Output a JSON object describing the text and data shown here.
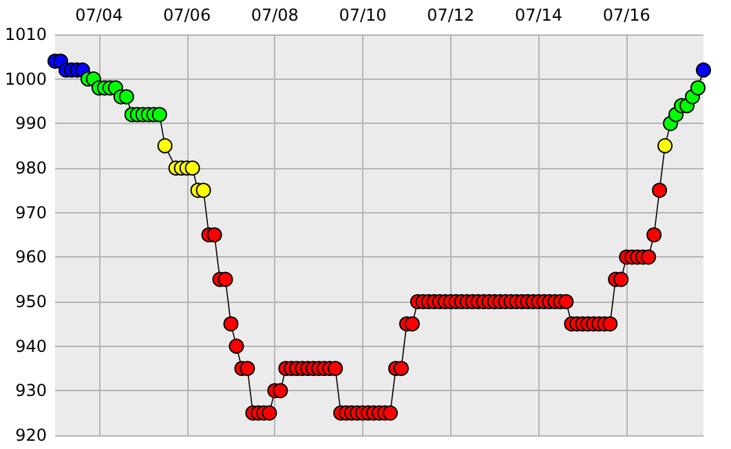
{
  "chart_data": {
    "type": "line",
    "xlim": [
      "--07-03T00:00",
      "--07-17T18:00"
    ],
    "ylim": [
      920,
      1010
    ],
    "xticks": [
      {
        "value": "--07-04",
        "label": "07/04"
      },
      {
        "value": "--07-06",
        "label": "07/06"
      },
      {
        "value": "--07-08",
        "label": "07/08"
      },
      {
        "value": "--07-10",
        "label": "07/10"
      },
      {
        "value": "--07-12",
        "label": "07/12"
      },
      {
        "value": "--07-14",
        "label": "07/14"
      },
      {
        "value": "--07-16",
        "label": "07/16"
      }
    ],
    "yticks": [
      920,
      930,
      940,
      950,
      960,
      970,
      980,
      990,
      1000,
      1010
    ],
    "grid": true,
    "marker": "circle",
    "line_style": "solid",
    "x": [
      "--07-03T00:00",
      "--07-03T03:00",
      "--07-03T06:00",
      "--07-03T09:00",
      "--07-03T12:00",
      "--07-03T15:00",
      "--07-03T18:00",
      "--07-03T21:00",
      "--07-04T00:00",
      "--07-04T03:00",
      "--07-04T06:00",
      "--07-04T09:00",
      "--07-04T12:00",
      "--07-04T15:00",
      "--07-04T18:00",
      "--07-04T21:00",
      "--07-05T00:00",
      "--07-05T03:00",
      "--07-05T06:00",
      "--07-05T09:00",
      "--07-05T12:00",
      "--07-05T18:00",
      "--07-05T21:00",
      "--07-06T00:00",
      "--07-06T03:00",
      "--07-06T06:00",
      "--07-06T09:00",
      "--07-06T12:00",
      "--07-06T15:00",
      "--07-06T18:00",
      "--07-06T21:00",
      "--07-07T00:00",
      "--07-07T03:00",
      "--07-07T06:00",
      "--07-07T09:00",
      "--07-07T12:00",
      "--07-07T15:00",
      "--07-07T18:00",
      "--07-07T21:00",
      "--07-08T00:00",
      "--07-08T03:00",
      "--07-08T06:00",
      "--07-08T09:00",
      "--07-08T12:00",
      "--07-08T15:00",
      "--07-08T18:00",
      "--07-08T21:00",
      "--07-09T00:00",
      "--07-09T03:00",
      "--07-09T06:00",
      "--07-09T09:00",
      "--07-09T12:00",
      "--07-09T15:00",
      "--07-09T18:00",
      "--07-09T21:00",
      "--07-10T00:00",
      "--07-10T03:00",
      "--07-10T06:00",
      "--07-10T09:00",
      "--07-10T12:00",
      "--07-10T15:00",
      "--07-10T18:00",
      "--07-10T21:00",
      "--07-11T00:00",
      "--07-11T03:00",
      "--07-11T06:00",
      "--07-11T09:00",
      "--07-11T12:00",
      "--07-11T15:00",
      "--07-11T18:00",
      "--07-11T21:00",
      "--07-12T00:00",
      "--07-12T03:00",
      "--07-12T06:00",
      "--07-12T09:00",
      "--07-12T12:00",
      "--07-12T15:00",
      "--07-12T18:00",
      "--07-12T21:00",
      "--07-13T00:00",
      "--07-13T03:00",
      "--07-13T06:00",
      "--07-13T09:00",
      "--07-13T12:00",
      "--07-13T15:00",
      "--07-13T18:00",
      "--07-13T21:00",
      "--07-14T00:00",
      "--07-14T03:00",
      "--07-14T06:00",
      "--07-14T09:00",
      "--07-14T12:00",
      "--07-14T15:00",
      "--07-14T18:00",
      "--07-14T21:00",
      "--07-15T00:00",
      "--07-15T03:00",
      "--07-15T06:00",
      "--07-15T09:00",
      "--07-15T12:00",
      "--07-15T15:00",
      "--07-15T18:00",
      "--07-15T21:00",
      "--07-16T00:00",
      "--07-16T03:00",
      "--07-16T06:00",
      "--07-16T09:00",
      "--07-16T12:00",
      "--07-16T15:00",
      "--07-16T18:00",
      "--07-16T21:00",
      "--07-17T00:00",
      "--07-17T03:00",
      "--07-17T06:00",
      "--07-17T09:00",
      "--07-17T12:00",
      "--07-17T15:00",
      "--07-17T18:00"
    ],
    "series": [
      {
        "color": "#000000",
        "values": [
          1004,
          1004,
          1002,
          1002,
          1002,
          1002,
          1000,
          1000,
          998,
          998,
          998,
          998,
          996,
          996,
          992,
          992,
          992,
          992,
          992,
          992,
          985,
          980,
          980,
          980,
          980,
          975,
          975,
          965,
          965,
          955,
          955,
          945,
          940,
          935,
          935,
          925,
          925,
          925,
          925,
          930,
          930,
          935,
          935,
          935,
          935,
          935,
          935,
          935,
          935,
          935,
          935,
          925,
          925,
          925,
          925,
          925,
          925,
          925,
          925,
          925,
          925,
          935,
          935,
          945,
          945,
          950,
          950,
          950,
          950,
          950,
          950,
          950,
          950,
          950,
          950,
          950,
          950,
          950,
          950,
          950,
          950,
          950,
          950,
          950,
          950,
          950,
          950,
          950,
          950,
          950,
          950,
          950,
          950,
          945,
          945,
          945,
          945,
          945,
          945,
          945,
          945,
          955,
          955,
          960,
          960,
          960,
          960,
          960,
          965,
          975,
          985,
          990,
          992,
          994,
          994,
          996,
          998,
          1002
        ],
        "colors": [
          "#0000ff",
          "#0000ff",
          "#0000ff",
          "#0000ff",
          "#0000ff",
          "#0000ff",
          "#00ff00",
          "#00ff00",
          "#00ff00",
          "#00ff00",
          "#00ff00",
          "#00ff00",
          "#00ff00",
          "#00ff00",
          "#00ff00",
          "#00ff00",
          "#00ff00",
          "#00ff00",
          "#00ff00",
          "#00ff00",
          "#ffff00",
          "#ffff00",
          "#ffff00",
          "#ffff00",
          "#ffff00",
          "#ffff00",
          "#ffff00",
          "#ff0000",
          "#ff0000",
          "#ff0000",
          "#ff0000",
          "#ff0000",
          "#ff0000",
          "#ff0000",
          "#ff0000",
          "#ff0000",
          "#ff0000",
          "#ff0000",
          "#ff0000",
          "#ff0000",
          "#ff0000",
          "#ff0000",
          "#ff0000",
          "#ff0000",
          "#ff0000",
          "#ff0000",
          "#ff0000",
          "#ff0000",
          "#ff0000",
          "#ff0000",
          "#ff0000",
          "#ff0000",
          "#ff0000",
          "#ff0000",
          "#ff0000",
          "#ff0000",
          "#ff0000",
          "#ff0000",
          "#ff0000",
          "#ff0000",
          "#ff0000",
          "#ff0000",
          "#ff0000",
          "#ff0000",
          "#ff0000",
          "#ff0000",
          "#ff0000",
          "#ff0000",
          "#ff0000",
          "#ff0000",
          "#ff0000",
          "#ff0000",
          "#ff0000",
          "#ff0000",
          "#ff0000",
          "#ff0000",
          "#ff0000",
          "#ff0000",
          "#ff0000",
          "#ff0000",
          "#ff0000",
          "#ff0000",
          "#ff0000",
          "#ff0000",
          "#ff0000",
          "#ff0000",
          "#ff0000",
          "#ff0000",
          "#ff0000",
          "#ff0000",
          "#ff0000",
          "#ff0000",
          "#ff0000",
          "#ff0000",
          "#ff0000",
          "#ff0000",
          "#ff0000",
          "#ff0000",
          "#ff0000",
          "#ff0000",
          "#ff0000",
          "#ff0000",
          "#ff0000",
          "#ff0000",
          "#ff0000",
          "#ff0000",
          "#ff0000",
          "#ff0000",
          "#ff0000",
          "#ff0000",
          "#ffff00",
          "#00ff00",
          "#00ff00",
          "#00ff00",
          "#00ff00",
          "#00ff00",
          "#00ff00",
          "#0000ff"
        ]
      }
    ]
  }
}
